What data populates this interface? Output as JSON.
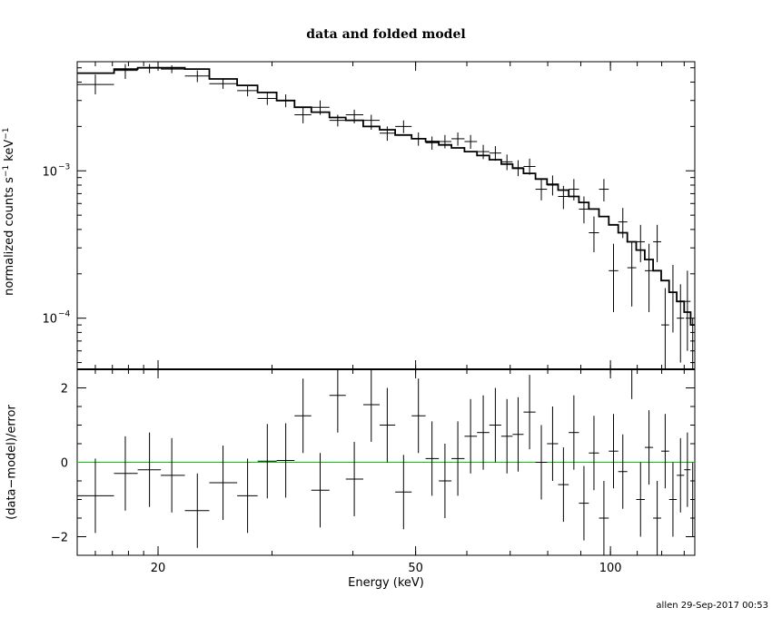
{
  "chart_data": {
    "type": "scatter",
    "title": "data and folded model",
    "xlabel": "Energy (keV)",
    "xscale": "log",
    "xlim": [
      15,
      135
    ],
    "xticks": [
      {
        "value": 20,
        "label": "20"
      },
      {
        "value": 50,
        "label": "50"
      },
      {
        "value": 100,
        "label": "100"
      }
    ],
    "footer": "allen 29-Sep-2017 00:53",
    "top_panel": {
      "ylabel_main": "normalized counts s",
      "ylabel_exp1": "−1",
      "ylabel_mid": " keV",
      "ylabel_exp2": "−1",
      "yscale": "log",
      "ylim": [
        4.5e-05,
        0.0055
      ],
      "yticks": [
        {
          "value": 0.001,
          "mantissa": "10",
          "exp": "−3"
        },
        {
          "value": 0.0001,
          "mantissa": "10",
          "exp": "−4"
        }
      ],
      "series": [
        {
          "type": "errorbars",
          "points": [
            [
              16.0,
              15.0,
              17.1,
              0.00385,
              0.0033,
              0.0045
            ],
            [
              17.8,
              17.1,
              18.6,
              0.0048,
              0.0042,
              0.0053
            ],
            [
              19.4,
              18.6,
              20.2,
              0.005,
              0.0046,
              0.0053
            ],
            [
              21.0,
              20.2,
              22.0,
              0.0049,
              0.0046,
              0.0052
            ],
            [
              23.0,
              22.0,
              24.0,
              0.0044,
              0.004,
              0.0048
            ],
            [
              25.2,
              24.0,
              26.5,
              0.0039,
              0.0036,
              0.0042
            ],
            [
              27.5,
              26.5,
              28.5,
              0.0035,
              0.0032,
              0.0038
            ],
            [
              29.5,
              28.5,
              30.5,
              0.0031,
              0.0028,
              0.0034
            ],
            [
              31.5,
              30.5,
              32.5,
              0.003,
              0.0027,
              0.0033
            ],
            [
              33.5,
              32.5,
              34.5,
              0.0024,
              0.0021,
              0.0027
            ],
            [
              35.6,
              34.5,
              36.8,
              0.0027,
              0.0024,
              0.003
            ],
            [
              37.9,
              36.8,
              39.0,
              0.0022,
              0.002,
              0.0024
            ],
            [
              40.2,
              39.0,
              41.5,
              0.0024,
              0.0021,
              0.0026
            ],
            [
              42.7,
              41.5,
              44.0,
              0.0022,
              0.0019,
              0.0024
            ],
            [
              45.2,
              44.0,
              46.5,
              0.0018,
              0.0016,
              0.002
            ],
            [
              47.9,
              46.5,
              49.3,
              0.002,
              0.0018,
              0.0022
            ],
            [
              50.5,
              49.3,
              51.8,
              0.00165,
              0.00148,
              0.00182
            ],
            [
              53.0,
              51.8,
              54.3,
              0.00155,
              0.00139,
              0.00171
            ],
            [
              55.5,
              54.3,
              56.8,
              0.00158,
              0.00142,
              0.00175
            ],
            [
              58.1,
              56.8,
              59.5,
              0.00165,
              0.00148,
              0.00182
            ],
            [
              60.8,
              59.5,
              62.2,
              0.00158,
              0.00141,
              0.00175
            ],
            [
              63.6,
              62.2,
              65.0,
              0.00135,
              0.0012,
              0.0015
            ],
            [
              66.4,
              65.0,
              67.8,
              0.00132,
              0.00117,
              0.00147
            ],
            [
              69.2,
              67.8,
              70.6,
              0.00115,
              0.00101,
              0.00129
            ],
            [
              72.0,
              70.6,
              73.4,
              0.00105,
              0.00092,
              0.00118
            ],
            [
              75.0,
              73.4,
              76.6,
              0.00107,
              0.00094,
              0.00121
            ],
            [
              78.2,
              76.6,
              79.8,
              0.00075,
              0.00063,
              0.00088
            ],
            [
              81.4,
              79.8,
              83.0,
              0.0008,
              0.00068,
              0.00093
            ],
            [
              84.6,
              83.0,
              86.2,
              0.00067,
              0.00055,
              0.00079
            ],
            [
              87.8,
              86.2,
              89.4,
              0.00075,
              0.00063,
              0.00088
            ],
            [
              91.0,
              89.4,
              92.6,
              0.00055,
              0.00044,
              0.00067
            ],
            [
              94.3,
              92.6,
              96.0,
              0.00038,
              0.00028,
              0.00049
            ],
            [
              97.7,
              96.0,
              99.4,
              0.00075,
              0.00062,
              0.00088
            ],
            [
              101.1,
              99.4,
              102.8,
              0.00021,
              0.00011,
              0.00032
            ],
            [
              104.5,
              102.8,
              106.2,
              0.00045,
              0.00035,
              0.00056
            ],
            [
              107.9,
              106.2,
              109.6,
              0.00022,
              0.00012,
              0.00033
            ],
            [
              111.3,
              109.6,
              113.0,
              0.00033,
              0.00024,
              0.00043
            ],
            [
              114.7,
              113.0,
              116.4,
              0.00021,
              0.00011,
              0.00032
            ],
            [
              118.1,
              116.4,
              119.8,
              0.00033,
              0.00024,
              0.00043
            ],
            [
              121.5,
              119.8,
              123.2,
              9e-05,
              4e-05,
              0.00016
            ],
            [
              124.9,
              123.2,
              126.6,
              0.00015,
              8e-05,
              0.00023
            ],
            [
              128.3,
              126.6,
              130.0,
              0.0001,
              5e-05,
              0.00017
            ],
            [
              131.5,
              130.0,
              133.0,
              0.00013,
              6e-05,
              0.00021
            ],
            [
              134.0,
              133.0,
              135.0,
              5e-05,
              4.5e-05,
              0.0001
            ]
          ]
        },
        {
          "type": "model-step",
          "steps": [
            [
              15.0,
              17.1,
              0.0046
            ],
            [
              17.1,
              18.6,
              0.0049
            ],
            [
              18.6,
              20.2,
              0.005
            ],
            [
              20.2,
              22.0,
              0.005
            ],
            [
              22.0,
              24.0,
              0.0049
            ],
            [
              24.0,
              26.5,
              0.0042
            ],
            [
              26.5,
              28.5,
              0.0038
            ],
            [
              28.5,
              30.5,
              0.0034
            ],
            [
              30.5,
              32.5,
              0.003
            ],
            [
              32.5,
              34.5,
              0.0027
            ],
            [
              34.5,
              36.8,
              0.0025
            ],
            [
              36.8,
              39.0,
              0.0023
            ],
            [
              39.0,
              41.5,
              0.0022
            ],
            [
              41.5,
              44.0,
              0.002
            ],
            [
              44.0,
              46.5,
              0.0019
            ],
            [
              46.5,
              49.3,
              0.00175
            ],
            [
              49.3,
              51.8,
              0.00165
            ],
            [
              51.8,
              54.3,
              0.00158
            ],
            [
              54.3,
              56.8,
              0.0015
            ],
            [
              56.8,
              59.5,
              0.00143
            ],
            [
              59.5,
              62.2,
              0.00135
            ],
            [
              62.2,
              65.0,
              0.00127
            ],
            [
              65.0,
              67.8,
              0.00119
            ],
            [
              67.8,
              70.6,
              0.00111
            ],
            [
              70.6,
              73.4,
              0.00104
            ],
            [
              73.4,
              76.6,
              0.00096
            ],
            [
              76.6,
              79.8,
              0.00088
            ],
            [
              79.8,
              83.0,
              0.00081
            ],
            [
              83.0,
              86.2,
              0.00074
            ],
            [
              86.2,
              89.4,
              0.00067
            ],
            [
              89.4,
              92.6,
              0.00061
            ],
            [
              92.6,
              96.0,
              0.00055
            ],
            [
              96.0,
              99.4,
              0.00049
            ],
            [
              99.4,
              102.8,
              0.00043
            ],
            [
              102.8,
              106.2,
              0.00038
            ],
            [
              106.2,
              109.6,
              0.00033
            ],
            [
              109.6,
              113.0,
              0.00029
            ],
            [
              113.0,
              116.4,
              0.00025
            ],
            [
              116.4,
              119.8,
              0.00021
            ],
            [
              119.8,
              123.2,
              0.00018
            ],
            [
              123.2,
              126.6,
              0.00015
            ],
            [
              126.6,
              130.0,
              0.00013
            ],
            [
              130.0,
              133.0,
              0.00011
            ],
            [
              133.0,
              135.0,
              9e-05
            ]
          ]
        }
      ]
    },
    "bottom_panel": {
      "ylabel": "(data−model)/error",
      "ylim": [
        -2.5,
        2.5
      ],
      "yticks": [
        {
          "value": 2,
          "label": "2"
        },
        {
          "value": 0,
          "label": "0"
        },
        {
          "value": -2,
          "label": "−2"
        }
      ],
      "reference_line": {
        "value": 0,
        "color": "#00cc00"
      },
      "series": [
        {
          "type": "errorbars",
          "points": [
            [
              16.0,
              15.0,
              17.1,
              -0.9,
              -1.9,
              0.1
            ],
            [
              17.8,
              17.1,
              18.6,
              -0.3,
              -1.3,
              0.7
            ],
            [
              19.4,
              18.6,
              20.2,
              -0.2,
              -1.2,
              0.8
            ],
            [
              21.0,
              20.2,
              22.0,
              -0.35,
              -1.35,
              0.65
            ],
            [
              23.0,
              22.0,
              24.0,
              -1.3,
              -2.3,
              -0.3
            ],
            [
              25.2,
              24.0,
              26.5,
              -0.55,
              -1.55,
              0.45
            ],
            [
              27.5,
              26.5,
              28.5,
              -0.9,
              -1.9,
              0.1
            ],
            [
              29.5,
              28.5,
              30.5,
              0.03,
              -0.97,
              1.03
            ],
            [
              31.5,
              30.5,
              32.5,
              0.05,
              -0.95,
              1.05
            ],
            [
              33.5,
              32.5,
              34.5,
              1.25,
              0.25,
              2.25
            ],
            [
              35.6,
              34.5,
              36.8,
              -0.75,
              -1.75,
              0.25
            ],
            [
              37.9,
              36.8,
              39.0,
              1.8,
              0.8,
              2.8
            ],
            [
              40.2,
              39.0,
              41.5,
              -0.45,
              -1.45,
              0.55
            ],
            [
              42.7,
              41.5,
              44.0,
              1.55,
              0.55,
              2.55
            ],
            [
              45.2,
              44.0,
              46.5,
              1.0,
              0.0,
              2.0
            ],
            [
              47.9,
              46.5,
              49.3,
              -0.8,
              -1.8,
              0.2
            ],
            [
              50.5,
              49.3,
              51.8,
              1.25,
              0.25,
              2.25
            ],
            [
              53.0,
              51.8,
              54.3,
              0.1,
              -0.9,
              1.1
            ],
            [
              55.5,
              54.3,
              56.8,
              -0.5,
              -1.5,
              0.5
            ],
            [
              58.1,
              56.8,
              59.5,
              0.1,
              -0.9,
              1.1
            ],
            [
              60.8,
              59.5,
              62.2,
              0.7,
              -0.3,
              1.7
            ],
            [
              63.6,
              62.2,
              65.0,
              0.8,
              -0.2,
              1.8
            ],
            [
              66.4,
              65.0,
              67.8,
              1.0,
              0.0,
              2.0
            ],
            [
              69.2,
              67.8,
              70.6,
              0.7,
              -0.3,
              1.7
            ],
            [
              72.0,
              70.6,
              73.4,
              0.75,
              -0.25,
              1.75
            ],
            [
              75.0,
              73.4,
              76.6,
              1.35,
              0.35,
              2.35
            ],
            [
              78.2,
              76.6,
              79.8,
              0.0,
              -1.0,
              1.0
            ],
            [
              81.4,
              79.8,
              83.0,
              0.5,
              -0.5,
              1.5
            ],
            [
              84.6,
              83.0,
              86.2,
              -0.6,
              -1.6,
              0.4
            ],
            [
              87.8,
              86.2,
              89.4,
              0.8,
              -0.2,
              1.8
            ],
            [
              91.0,
              89.4,
              92.6,
              -1.1,
              -2.1,
              -0.1
            ],
            [
              94.3,
              92.6,
              96.0,
              0.25,
              -0.75,
              1.25
            ],
            [
              97.7,
              96.0,
              99.4,
              -1.5,
              -2.5,
              -0.5
            ],
            [
              101.1,
              99.4,
              102.8,
              0.3,
              -0.7,
              1.3
            ],
            [
              104.5,
              102.8,
              106.2,
              -0.25,
              -1.25,
              0.75
            ],
            [
              107.9,
              106.2,
              109.6,
              2.7,
              1.7,
              3.7
            ],
            [
              111.3,
              109.6,
              113.0,
              -1.0,
              -2.0,
              0.0
            ],
            [
              114.7,
              113.0,
              116.4,
              0.4,
              -0.6,
              1.4
            ],
            [
              118.1,
              116.4,
              119.8,
              -1.5,
              -2.5,
              -0.5
            ],
            [
              121.5,
              119.8,
              123.2,
              0.3,
              -0.7,
              1.3
            ],
            [
              124.9,
              123.2,
              126.6,
              -1.0,
              -2.0,
              0.0
            ],
            [
              128.3,
              126.6,
              130.0,
              -0.35,
              -1.35,
              0.65
            ],
            [
              131.5,
              130.0,
              133.0,
              -0.2,
              -1.2,
              0.8
            ],
            [
              134.0,
              133.0,
              135.0,
              -1.0,
              -2.0,
              0.0
            ]
          ]
        }
      ]
    }
  }
}
